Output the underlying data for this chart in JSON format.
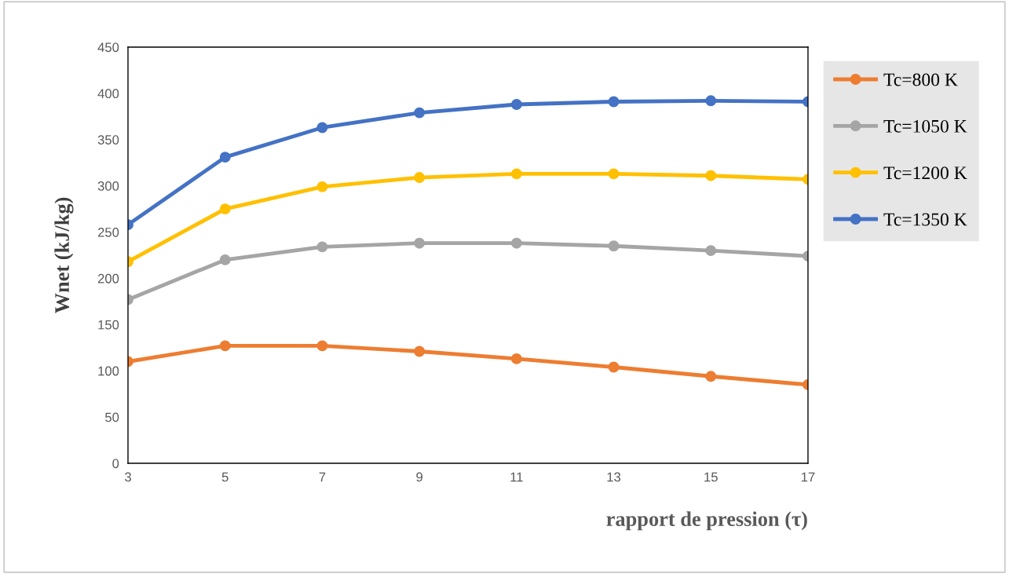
{
  "chart_data": {
    "type": "line",
    "xlabel": "rapport de pression (τ)",
    "ylabel": "Wnet (kJ/kg)",
    "x": [
      3,
      5,
      7,
      9,
      11,
      13,
      15,
      17
    ],
    "xlim": [
      3,
      17
    ],
    "xticks": [
      3,
      5,
      7,
      9,
      11,
      13,
      15,
      17
    ],
    "ylim": [
      0,
      450
    ],
    "yticks": [
      0,
      50,
      100,
      150,
      200,
      250,
      300,
      350,
      400,
      450
    ],
    "grid": false,
    "legend": "right",
    "marker": "circle",
    "line_style": "solid",
    "series": [
      {
        "name": "Tc=800 K",
        "color": "#ed7d31",
        "values": [
          110,
          127,
          127,
          121,
          113,
          104,
          94,
          85
        ]
      },
      {
        "name": "Tc=1050 K",
        "color": "#a5a5a5",
        "values": [
          177,
          220,
          234,
          238,
          238,
          235,
          230,
          224
        ]
      },
      {
        "name": "Tc=1200 K",
        "color": "#ffc000",
        "values": [
          218,
          275,
          299,
          309,
          313,
          313,
          311,
          307
        ]
      },
      {
        "name": "Tc=1350 K",
        "color": "#4472c4",
        "values": [
          258,
          331,
          363,
          379,
          388,
          391,
          392,
          391
        ]
      }
    ]
  }
}
